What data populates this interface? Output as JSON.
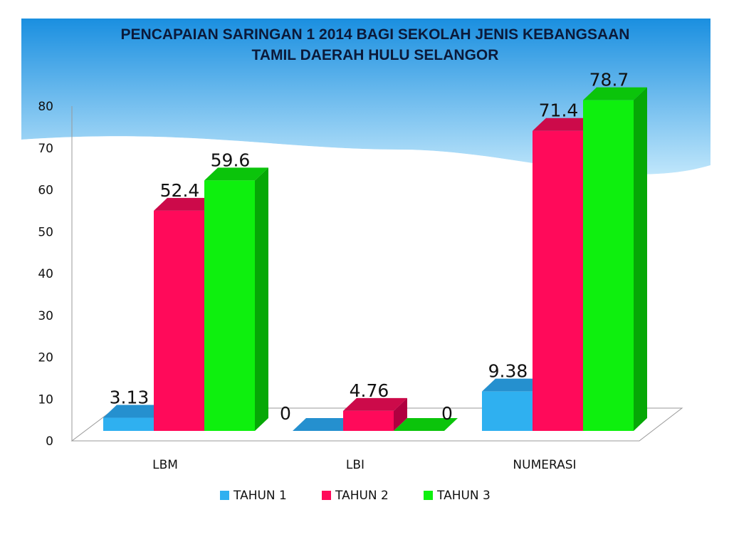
{
  "chart_data": {
    "type": "bar",
    "title_lines": [
      "PENCAPAIAN SARINGAN  1 2014 BAGI SEKOLAH JENIS KEBANGSAAN",
      "TAMIL DAERAH HULU SELANGOR"
    ],
    "categories": [
      "LBM",
      "LBI",
      "NUMERASI"
    ],
    "series": [
      {
        "name": "TAHUN 1",
        "values": [
          3.13,
          0,
          9.38
        ],
        "labels": [
          "3.13",
          "0",
          "9.38"
        ],
        "color": "#2fb0f0",
        "side": "#1f86c0",
        "top": "#2590cf"
      },
      {
        "name": "TAHUN 2",
        "values": [
          52.4,
          4.76,
          71.4
        ],
        "labels": [
          "52.4",
          "4.76",
          "71.4"
        ],
        "color": "#ff0a5a",
        "side": "#b00040",
        "top": "#cc0a4a"
      },
      {
        "name": "TAHUN 3",
        "values": [
          59.6,
          0,
          78.7
        ],
        "labels": [
          "59.6",
          "0",
          "78.7"
        ],
        "color": "#0ef00e",
        "side": "#06a806",
        "top": "#0bc40b"
      }
    ],
    "yticks": [
      "0",
      "10",
      "20",
      "30",
      "40",
      "50",
      "60",
      "70",
      "80"
    ],
    "ylim": [
      0,
      80
    ],
    "grid": false,
    "legend_position": "bottom",
    "three_d": true
  },
  "theme": {
    "header_top": "#1a8fe0",
    "header_bottom": "#bfe6fb",
    "axis_color": "#999999"
  }
}
